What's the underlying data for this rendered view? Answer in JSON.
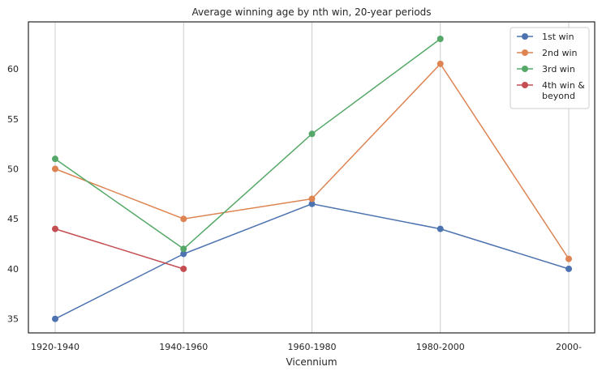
{
  "chart_data": {
    "type": "line",
    "title": "Average winning age by nth win, 20-year periods",
    "xlabel": "Vicennium",
    "ylabel": "",
    "categories": [
      "1920-1940",
      "1940-1960",
      "1960-1980",
      "1980-2000",
      "2000-"
    ],
    "y_ticks": [
      "35",
      "40",
      "45",
      "50",
      "55",
      "60"
    ],
    "ylim": [
      33.6,
      64.7
    ],
    "grid": "vertical",
    "legend_position": "top-right",
    "series": [
      {
        "name": "1st win",
        "color": "#4c72b0",
        "values": [
          35.0,
          41.5,
          46.5,
          44.0,
          40.0
        ]
      },
      {
        "name": "2nd win",
        "color": "#dd8452",
        "values": [
          50.0,
          45.0,
          47.0,
          60.5,
          41.0
        ]
      },
      {
        "name": "3rd win",
        "color": "#55a868",
        "values": [
          51.0,
          42.0,
          53.5,
          63.0,
          null
        ]
      },
      {
        "name_lines": [
          "4th win &",
          "beyond"
        ],
        "color": "#c44e52",
        "values": [
          44.0,
          40.0,
          null,
          null,
          null
        ]
      }
    ]
  }
}
